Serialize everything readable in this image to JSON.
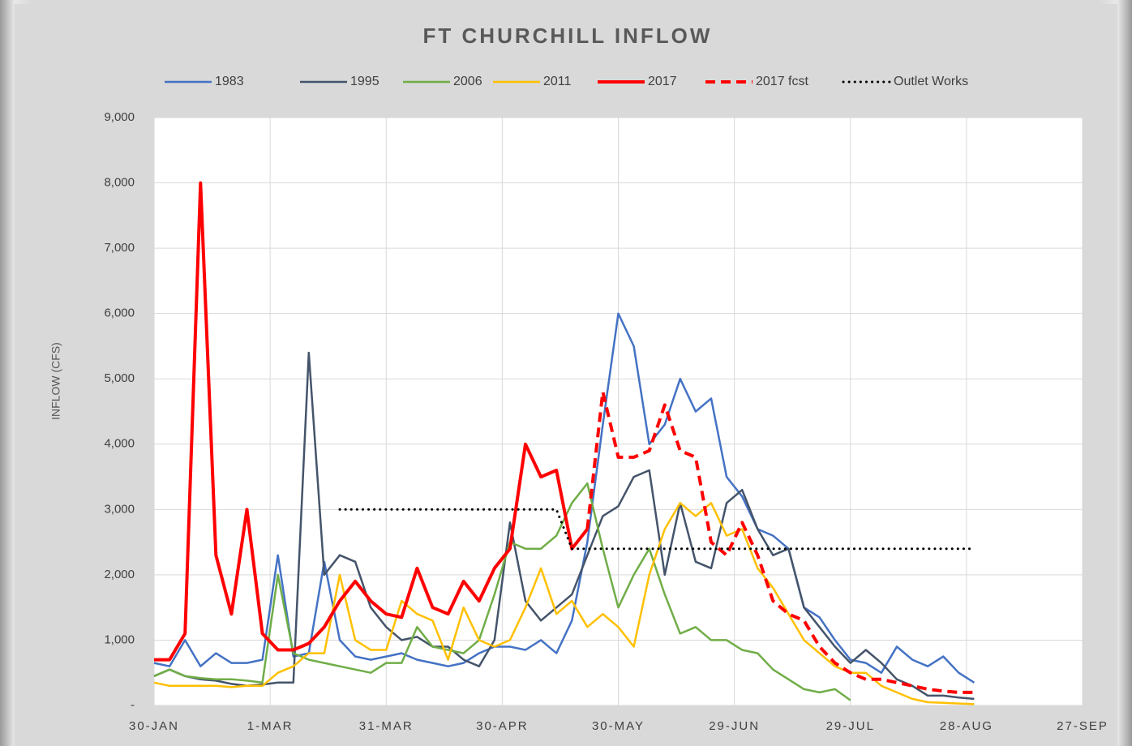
{
  "chart_data": {
    "type": "line",
    "title": "FT CHURCHILL  INFLOW",
    "y_label": "INFLOW (CFS)",
    "x": [
      "30-JAN",
      "3-FEB",
      "7-FEB",
      "11-FEB",
      "15-FEB",
      "19-FEB",
      "23-FEB",
      "27-FEB",
      "3-MAR",
      "7-MAR",
      "11-MAR",
      "15-MAR",
      "19-MAR",
      "23-MAR",
      "27-MAR",
      "31-MAR",
      "4-APR",
      "8-APR",
      "12-APR",
      "16-APR",
      "20-APR",
      "24-APR",
      "28-APR",
      "2-MAY",
      "6-MAY",
      "10-MAY",
      "14-MAY",
      "18-MAY",
      "22-MAY",
      "26-MAY",
      "30-MAY",
      "3-JUN",
      "7-JUN",
      "11-JUN",
      "15-JUN",
      "19-JUN",
      "23-JUN",
      "27-JUN",
      "1-JUL",
      "5-JUL",
      "9-JUL",
      "13-JUL",
      "17-JUL",
      "21-JUL",
      "25-JUL",
      "29-JUL",
      "2-AUG",
      "6-AUG",
      "10-AUG",
      "14-AUG",
      "18-AUG",
      "22-AUG",
      "26-AUG",
      "30-AUG"
    ],
    "xlim": [
      "30-JAN",
      "27-SEP"
    ],
    "xticks": [
      "30-JAN",
      "1-MAR",
      "31-MAR",
      "30-APR",
      "30-MAY",
      "29-JUN",
      "29-JUL",
      "28-AUG",
      "27-SEP"
    ],
    "ylim": [
      0,
      9000
    ],
    "yticks": [
      {
        "value": 0,
        "label": "-"
      },
      {
        "value": 1000,
        "label": "1,000"
      },
      {
        "value": 2000,
        "label": "2,000"
      },
      {
        "value": 3000,
        "label": "3,000"
      },
      {
        "value": 4000,
        "label": "4,000"
      },
      {
        "value": 5000,
        "label": "5,000"
      },
      {
        "value": 6000,
        "label": "6,000"
      },
      {
        "value": 7000,
        "label": "7,000"
      },
      {
        "value": 8000,
        "label": "8,000"
      },
      {
        "value": 9000,
        "label": "9,000"
      }
    ],
    "grid": true,
    "legend": "top",
    "series": [
      {
        "name": "1983",
        "color": "#4472c4",
        "dash": "solid",
        "values": [
          650,
          600,
          1000,
          600,
          800,
          650,
          650,
          700,
          2300,
          750,
          800,
          2200,
          1000,
          750,
          700,
          750,
          800,
          700,
          650,
          600,
          650,
          800,
          900,
          900,
          850,
          1000,
          800,
          1300,
          2500,
          4300,
          6000,
          5500,
          4000,
          4300,
          5000,
          4500,
          4700,
          3500,
          3200,
          2700,
          2600,
          2400,
          1500,
          1350,
          1000,
          700,
          650,
          500,
          900,
          700,
          600,
          750,
          500,
          350
        ]
      },
      {
        "name": "1995",
        "color": "#44546a",
        "dash": "solid",
        "values": [
          450,
          550,
          450,
          400,
          380,
          330,
          300,
          320,
          350,
          350,
          5400,
          2000,
          2300,
          2200,
          1500,
          1200,
          1000,
          1050,
          900,
          900,
          700,
          600,
          1000,
          2800,
          1600,
          1300,
          1500,
          1700,
          2300,
          2900,
          3050,
          3500,
          3600,
          2000,
          3100,
          2200,
          2100,
          3100,
          3300,
          2700,
          2300,
          2400,
          1500,
          1200,
          900,
          650,
          850,
          650,
          400,
          300,
          150,
          150,
          120,
          100
        ]
      },
      {
        "name": "2006",
        "color": "#70ad47",
        "dash": "solid",
        "values": [
          450,
          550,
          450,
          420,
          400,
          400,
          380,
          350,
          2000,
          800,
          700,
          650,
          600,
          550,
          500,
          650,
          650,
          1200,
          900,
          850,
          800,
          1000,
          1700,
          2500,
          2400,
          2400,
          2600,
          3100,
          3400,
          2400,
          1500,
          2000,
          2400,
          1700,
          1100,
          1200,
          1000,
          1000,
          850,
          800,
          550,
          400,
          250,
          200,
          250,
          80,
          null,
          null,
          null,
          null,
          null,
          null,
          null,
          null
        ]
      },
      {
        "name": "2011",
        "color": "#ffc000",
        "dash": "solid",
        "values": [
          350,
          300,
          300,
          300,
          300,
          280,
          300,
          300,
          500,
          600,
          800,
          800,
          2000,
          1000,
          850,
          850,
          1600,
          1400,
          1300,
          700,
          1500,
          1000,
          900,
          1000,
          1500,
          2100,
          1400,
          1600,
          1200,
          1400,
          1200,
          900,
          2000,
          2700,
          3100,
          2900,
          3100,
          2600,
          2700,
          2100,
          1800,
          1400,
          1000,
          800,
          600,
          500,
          500,
          300,
          200,
          100,
          50,
          40,
          30,
          20
        ]
      },
      {
        "name": "2017",
        "color": "#ff0000",
        "dash": "solid",
        "values": [
          700,
          700,
          1100,
          8000,
          2300,
          1400,
          3000,
          1100,
          850,
          850,
          950,
          1200,
          1600,
          1900,
          1600,
          1400,
          1350,
          2100,
          1500,
          1400,
          1900,
          1600,
          2100,
          2400,
          4000,
          3500,
          3600,
          2400,
          2700,
          null,
          null,
          null,
          null,
          null,
          null,
          null,
          null,
          null,
          null,
          null,
          null,
          null,
          null,
          null,
          null,
          null,
          null,
          null,
          null,
          null,
          null,
          null,
          null,
          null
        ]
      },
      {
        "name": "2017 fcst",
        "color": "#ff0000",
        "dash": "dashed",
        "values": [
          null,
          null,
          null,
          null,
          null,
          null,
          null,
          null,
          null,
          null,
          null,
          null,
          null,
          null,
          null,
          null,
          null,
          null,
          null,
          null,
          null,
          null,
          null,
          null,
          null,
          null,
          null,
          null,
          2700,
          4800,
          3800,
          3800,
          3900,
          4600,
          3900,
          3800,
          2500,
          2300,
          2800,
          2300,
          1600,
          1400,
          1300,
          900,
          650,
          500,
          400,
          400,
          350,
          300,
          250,
          220,
          200,
          200
        ]
      },
      {
        "name": "Outlet Works",
        "color": "#000000",
        "dash": "dotted",
        "values": [
          null,
          null,
          null,
          null,
          null,
          null,
          null,
          null,
          null,
          null,
          null,
          null,
          3000,
          3000,
          3000,
          3000,
          3000,
          3000,
          3000,
          3000,
          3000,
          3000,
          3000,
          3000,
          3000,
          3000,
          3000,
          2400,
          2400,
          2400,
          2400,
          2400,
          2400,
          2400,
          2400,
          2400,
          2400,
          2400,
          2400,
          2400,
          2400,
          2400,
          2400,
          2400,
          2400,
          2400,
          2400,
          2400,
          2400,
          2400,
          2400,
          2400,
          2400,
          2400
        ]
      }
    ]
  }
}
